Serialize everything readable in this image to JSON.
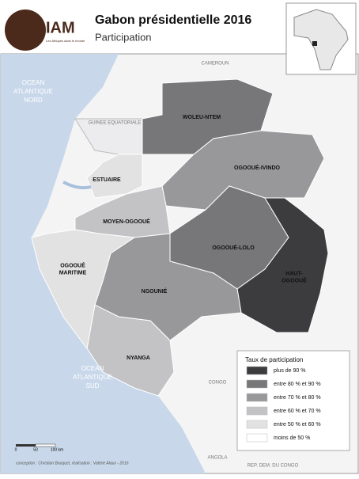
{
  "header": {
    "logo": "IAM",
    "logo_tagline": "Les Afriques dans le monde",
    "title": "Gabon présidentielle 2016",
    "subtitle": "Participation"
  },
  "neighbors": [
    {
      "label": "CAMEROUN"
    },
    {
      "label": "GUINEE EQUATORIALE"
    },
    {
      "label": "CONGO"
    },
    {
      "label": "ANGOLA"
    },
    {
      "label": "REP. DEM. DU CONGO"
    }
  ],
  "oceans": [
    {
      "lines": [
        "OCEAN",
        "ATLANTIQUE",
        "NORD"
      ]
    },
    {
      "lines": [
        "OCEAN",
        "ATLANTIQUE",
        "SUD"
      ]
    }
  ],
  "provinces": [
    {
      "lines": [
        "WOLEU-NTEM"
      ],
      "class": 1
    },
    {
      "lines": [
        "OGOOUÉ-IVINDO"
      ],
      "class": 2
    },
    {
      "lines": [
        "ESTUAIRE"
      ],
      "class": 4
    },
    {
      "lines": [
        "MOYEN-OGOOUÉ"
      ],
      "class": 3
    },
    {
      "lines": [
        "OGOOUÉ-LOLO"
      ],
      "class": 1
    },
    {
      "lines": [
        "HAUT-",
        "OGOOUÉ"
      ],
      "class": 0
    },
    {
      "lines": [
        "NGOUNIÉ"
      ],
      "class": 2
    },
    {
      "lines": [
        "NYANGA"
      ],
      "class": 3
    },
    {
      "lines": [
        "OGOOUÉ",
        "MARITIME"
      ],
      "class": 4
    }
  ],
  "legend": {
    "title": "Taux de participation",
    "items": [
      {
        "label": "plus de 90 %",
        "color": "#3c3c3e"
      },
      {
        "label": "entre 80 % et 90 %",
        "color": "#77777a"
      },
      {
        "label": "entre 70 % et 80 %",
        "color": "#98989b"
      },
      {
        "label": "entre 60 % et 70 %",
        "color": "#c3c3c5"
      },
      {
        "label": "entre 50 % et 60 %",
        "color": "#e2e2e3"
      },
      {
        "label": "moins de 50 %",
        "color": "#ffffff"
      }
    ]
  },
  "scale": {
    "labels": [
      "0",
      "50",
      "100 km"
    ]
  },
  "credit": "conception : Christian Bouquet, réalisation : Valérie Alaux - 2016"
}
